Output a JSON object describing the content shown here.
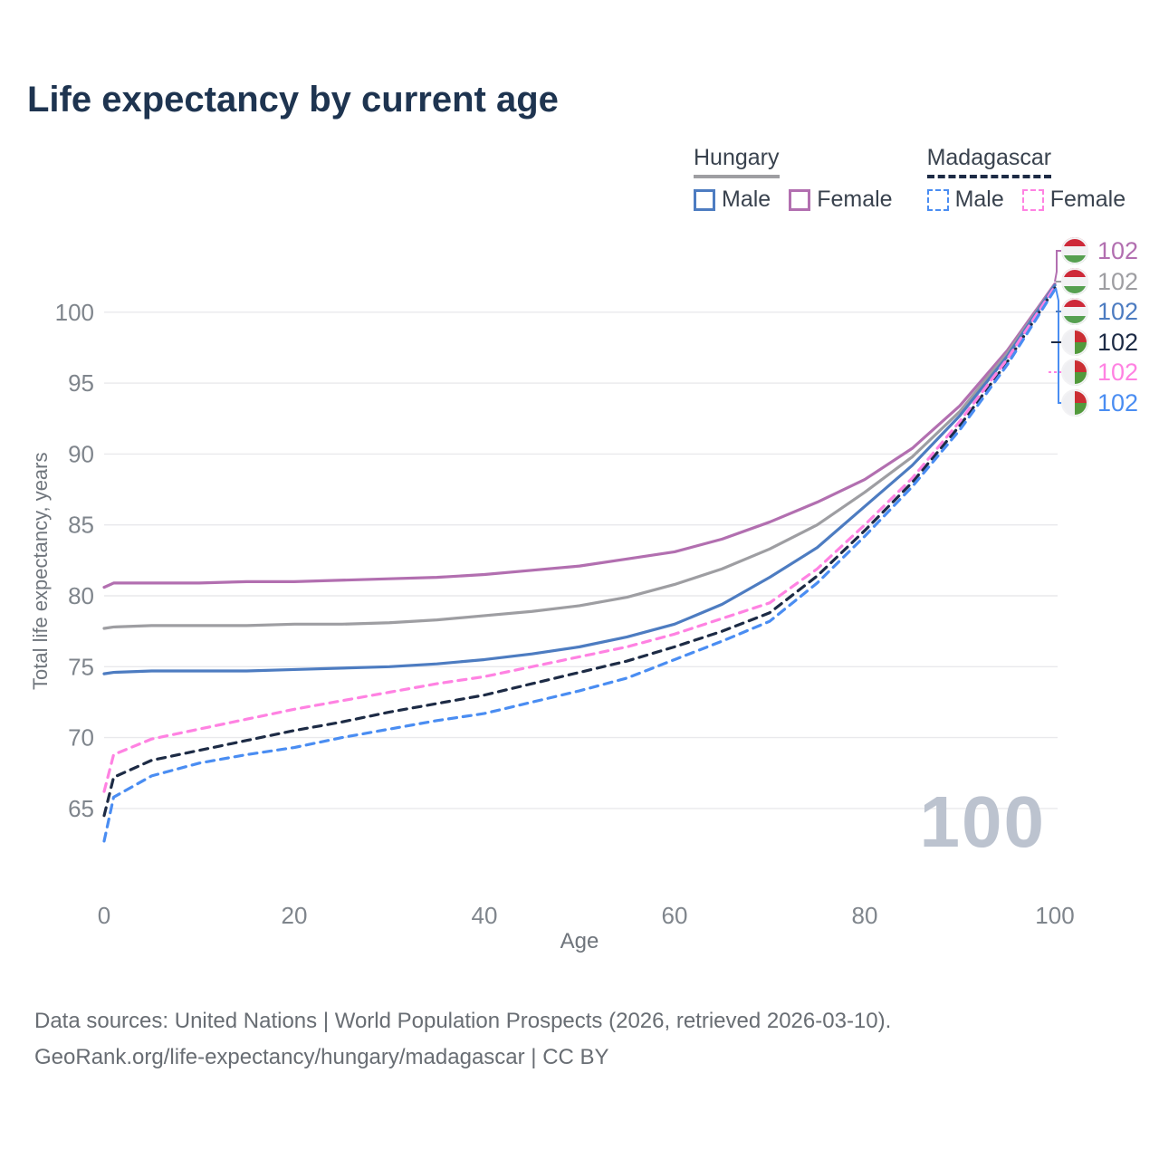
{
  "title": "Life expectancy by current age",
  "watermark": "100",
  "colors": {
    "title_text": "#1e3450",
    "axis_text": "#7f858c",
    "axis_title_text": "#6f757c",
    "grid_line": "#e9e9ec",
    "legend_text": "#39424e",
    "footer_text": "#686d73",
    "watermark_text": "#bcc3cf",
    "hungary_female": "#b26fb0",
    "hungary_all": "#9e9ea2",
    "hungary_male": "#4d7cc1",
    "madagascar_all": "#1d2b45",
    "madagascar_female": "#ff82e2",
    "madagascar_male": "#4a8df2"
  },
  "legend": {
    "groups": [
      {
        "label": "Hungary",
        "underline_series": "hu_t",
        "dashed": false,
        "items": [
          {
            "label": "Male",
            "series": "hu_m"
          },
          {
            "label": "Female",
            "series": "hu_f"
          }
        ]
      },
      {
        "label": "Madagascar",
        "underline_series": "mg_t",
        "dashed": true,
        "items": [
          {
            "label": "Male",
            "series": "mg_m"
          },
          {
            "label": "Female",
            "series": "mg_f"
          }
        ]
      }
    ]
  },
  "chart_data": {
    "type": "line",
    "title": "Life expectancy by current age",
    "xlabel": "Age",
    "ylabel": "Total life expectancy, years",
    "xticks": [
      0,
      20,
      40,
      60,
      80,
      100
    ],
    "yticks": [
      65,
      70,
      75,
      80,
      85,
      90,
      95,
      100
    ],
    "xlim": [
      0,
      100
    ],
    "ylim": [
      62,
      103
    ],
    "grid": true,
    "legend_position": "top-right",
    "ages": [
      0,
      1,
      5,
      10,
      15,
      20,
      25,
      30,
      35,
      40,
      45,
      50,
      55,
      60,
      65,
      70,
      75,
      80,
      85,
      90,
      95,
      100
    ],
    "series": [
      {
        "id": "hu_f",
        "name": "Hungary Female",
        "country": "Hungary",
        "sex": "Female",
        "color": "#b26fb0",
        "dashed": false,
        "values": [
          80.6,
          80.9,
          80.9,
          80.9,
          81.0,
          81.0,
          81.1,
          81.2,
          81.3,
          81.5,
          81.8,
          82.1,
          82.6,
          83.1,
          84.0,
          85.2,
          86.6,
          88.2,
          90.4,
          93.4,
          97.3,
          102.0
        ]
      },
      {
        "id": "hu_t",
        "name": "Hungary Both sexes",
        "country": "Hungary",
        "sex": "All",
        "color": "#9e9ea2",
        "dashed": false,
        "values": [
          77.7,
          77.8,
          77.9,
          77.9,
          77.9,
          78.0,
          78.0,
          78.1,
          78.3,
          78.6,
          78.9,
          79.3,
          79.9,
          80.8,
          81.9,
          83.3,
          85.0,
          87.3,
          89.8,
          93.0,
          97.1,
          101.9
        ]
      },
      {
        "id": "hu_m",
        "name": "Hungary Male",
        "country": "Hungary",
        "sex": "Male",
        "color": "#4d7cc1",
        "dashed": false,
        "values": [
          74.5,
          74.6,
          74.7,
          74.7,
          74.7,
          74.8,
          74.9,
          75.0,
          75.2,
          75.5,
          75.9,
          76.4,
          77.1,
          78.0,
          79.4,
          81.3,
          83.4,
          86.3,
          89.2,
          92.7,
          96.9,
          101.9
        ]
      },
      {
        "id": "mg_t",
        "name": "Madagascar Both sexes",
        "country": "Madagascar",
        "sex": "All",
        "color": "#1d2b45",
        "dashed": true,
        "values": [
          64.5,
          67.2,
          68.4,
          69.1,
          69.8,
          70.5,
          71.1,
          71.8,
          72.4,
          73.0,
          73.8,
          74.6,
          75.4,
          76.4,
          77.5,
          78.8,
          81.4,
          84.6,
          88.0,
          92.0,
          96.5,
          101.7
        ]
      },
      {
        "id": "mg_f",
        "name": "Madagascar Female",
        "country": "Madagascar",
        "sex": "Female",
        "color": "#ff82e2",
        "dashed": true,
        "values": [
          66.2,
          68.8,
          69.9,
          70.6,
          71.3,
          72.0,
          72.6,
          73.2,
          73.8,
          74.3,
          75.0,
          75.7,
          76.4,
          77.3,
          78.4,
          79.5,
          81.9,
          85.0,
          88.3,
          92.3,
          96.7,
          101.8
        ]
      },
      {
        "id": "mg_m",
        "name": "Madagascar Male",
        "country": "Madagascar",
        "sex": "Male",
        "color": "#4a8df2",
        "dashed": true,
        "values": [
          62.7,
          65.8,
          67.3,
          68.2,
          68.8,
          69.3,
          70.0,
          70.6,
          71.2,
          71.7,
          72.5,
          73.3,
          74.2,
          75.5,
          76.8,
          78.2,
          80.9,
          84.2,
          87.7,
          91.7,
          96.3,
          101.6
        ]
      }
    ],
    "end_labels": [
      {
        "series": "hu_f",
        "flag": "hungary",
        "value": "102"
      },
      {
        "series": "hu_t",
        "flag": "hungary",
        "value": "102"
      },
      {
        "series": "hu_m",
        "flag": "hungary",
        "value": "102"
      },
      {
        "series": "mg_t",
        "flag": "madagascar",
        "value": "102"
      },
      {
        "series": "mg_f",
        "flag": "madagascar",
        "value": "102"
      },
      {
        "series": "mg_m",
        "flag": "madagascar",
        "value": "102"
      }
    ]
  },
  "footer": {
    "line1": "Data sources: United Nations | World Population Prospects (2026, retrieved 2026-03-10).",
    "line2": "GeoRank.org/life-expectancy/hungary/madagascar | CC BY"
  }
}
